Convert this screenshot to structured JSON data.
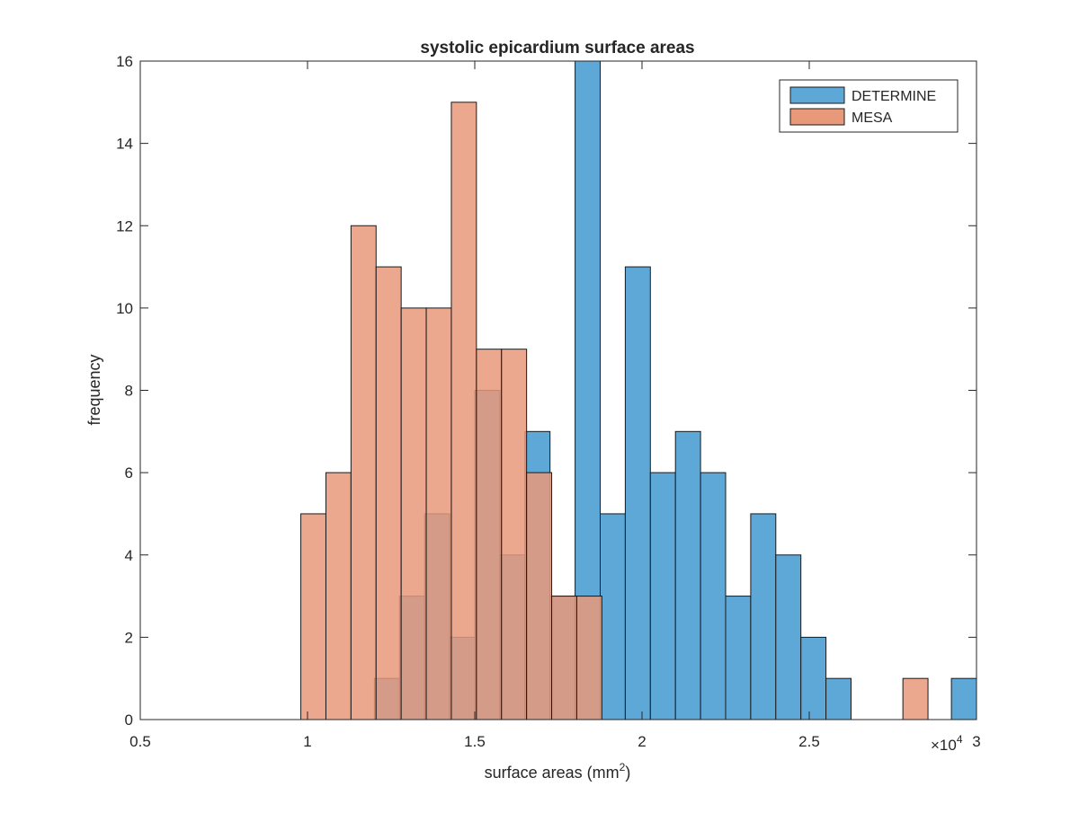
{
  "chart_data": {
    "type": "bar",
    "title": "systolic epicardium surface areas",
    "xlabel": "surface areas (mm",
    "xlabel_superscript": "2",
    "xlabel_suffix": ")",
    "ylabel": "frequency",
    "xlim": [
      0.5,
      3
    ],
    "ylim": [
      0,
      16
    ],
    "x_ticks": [
      0.5,
      1,
      1.5,
      2,
      2.5,
      3
    ],
    "x_tick_labels": [
      "0.5",
      "1",
      "1.5",
      "2",
      "2.5",
      "3"
    ],
    "y_ticks": [
      0,
      2,
      4,
      6,
      8,
      10,
      12,
      14,
      16
    ],
    "y_tick_labels": [
      "0",
      "2",
      "4",
      "6",
      "8",
      "10",
      "12",
      "14",
      "16"
    ],
    "x_exponent_base": "×10",
    "x_exponent_power": "4",
    "grid": false,
    "legend_position": "top-right",
    "series": [
      {
        "name": "DETERMINE",
        "color": "#5ea8d8",
        "bin_edges": [
          1.2,
          1.275,
          1.35,
          1.425,
          1.5,
          1.575,
          1.65,
          1.725,
          1.8,
          1.875,
          1.95,
          2.025,
          2.1,
          2.175,
          2.25,
          2.325,
          2.4,
          2.475,
          2.55,
          2.625,
          2.7,
          2.775,
          2.85,
          2.925,
          3.0
        ],
        "values": [
          1,
          3,
          5,
          2,
          8,
          4,
          7,
          3,
          16,
          5,
          11,
          6,
          7,
          6,
          3,
          5,
          4,
          2,
          1,
          0,
          0,
          0,
          0,
          1
        ]
      },
      {
        "name": "MESA",
        "color": "#e8997a",
        "bin_edges": [
          0.98,
          1.055,
          1.13,
          1.205,
          1.28,
          1.355,
          1.43,
          1.505,
          1.58,
          1.655,
          1.73,
          1.805,
          1.88,
          1.955,
          2.03,
          2.105,
          2.18,
          2.255,
          2.33,
          2.405,
          2.48,
          2.555,
          2.63,
          2.705,
          2.78,
          2.855
        ],
        "values": [
          5,
          6,
          12,
          11,
          10,
          10,
          15,
          9,
          9,
          6,
          3,
          3,
          0,
          0,
          0,
          0,
          0,
          0,
          0,
          0,
          0,
          0,
          0,
          0,
          1
        ]
      }
    ]
  }
}
